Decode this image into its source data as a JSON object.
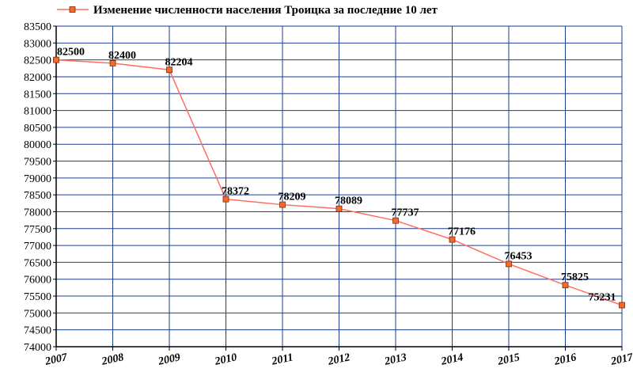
{
  "chart_data": {
    "type": "line",
    "title": "",
    "xlabel": "",
    "ylabel": "",
    "x": [
      "2007",
      "2008",
      "2009",
      "2010",
      "2011",
      "2012",
      "2013",
      "2014",
      "2015",
      "2016",
      "2017"
    ],
    "series": [
      {
        "name": "Изменение численности населения Троицка за последние 10 лет",
        "values": [
          82500,
          82400,
          82204,
          78372,
          78209,
          78089,
          77737,
          77176,
          76453,
          75825,
          75231
        ],
        "data_labels": [
          "82500",
          "82400",
          "82204",
          "78372",
          "78209",
          "78089",
          "77737",
          "77176",
          "76453",
          "75825",
          "75231"
        ]
      }
    ],
    "ylim": [
      74000,
      83500
    ],
    "y_ticks": [
      "74000",
      "74500",
      "75000",
      "75500",
      "76000",
      "76500",
      "77000",
      "77500",
      "78000",
      "78500",
      "79000",
      "79500",
      "80000",
      "80500",
      "81000",
      "81500",
      "82000",
      "82500",
      "83000",
      "83500"
    ],
    "grid": true,
    "legend_position": "top-center",
    "colors": {
      "line": "#ff6f61",
      "marker_fill": "#f26b2b",
      "marker_stroke": "#7a2b0c",
      "grid": "#1d3f8c",
      "axis": "#000000"
    }
  }
}
